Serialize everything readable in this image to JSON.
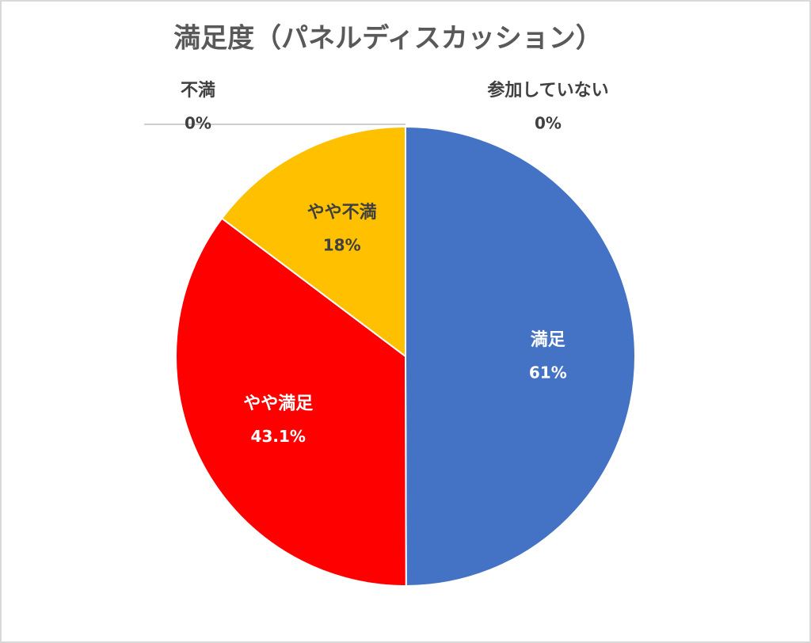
{
  "chart_data": {
    "type": "pie",
    "title": "満足度（パネルディスカッション）",
    "categories": [
      "満足",
      "やや満足",
      "やや不満",
      "不満",
      "参加していない"
    ],
    "values": [
      61,
      43.1,
      18,
      0,
      0
    ],
    "value_labels": [
      "61%",
      "43.1%",
      "18%",
      "0%",
      "0%"
    ],
    "colors": [
      "#4472c4",
      "#ff0000",
      "#ffc000",
      "#a5a5a5",
      "#5b9bd5"
    ]
  }
}
